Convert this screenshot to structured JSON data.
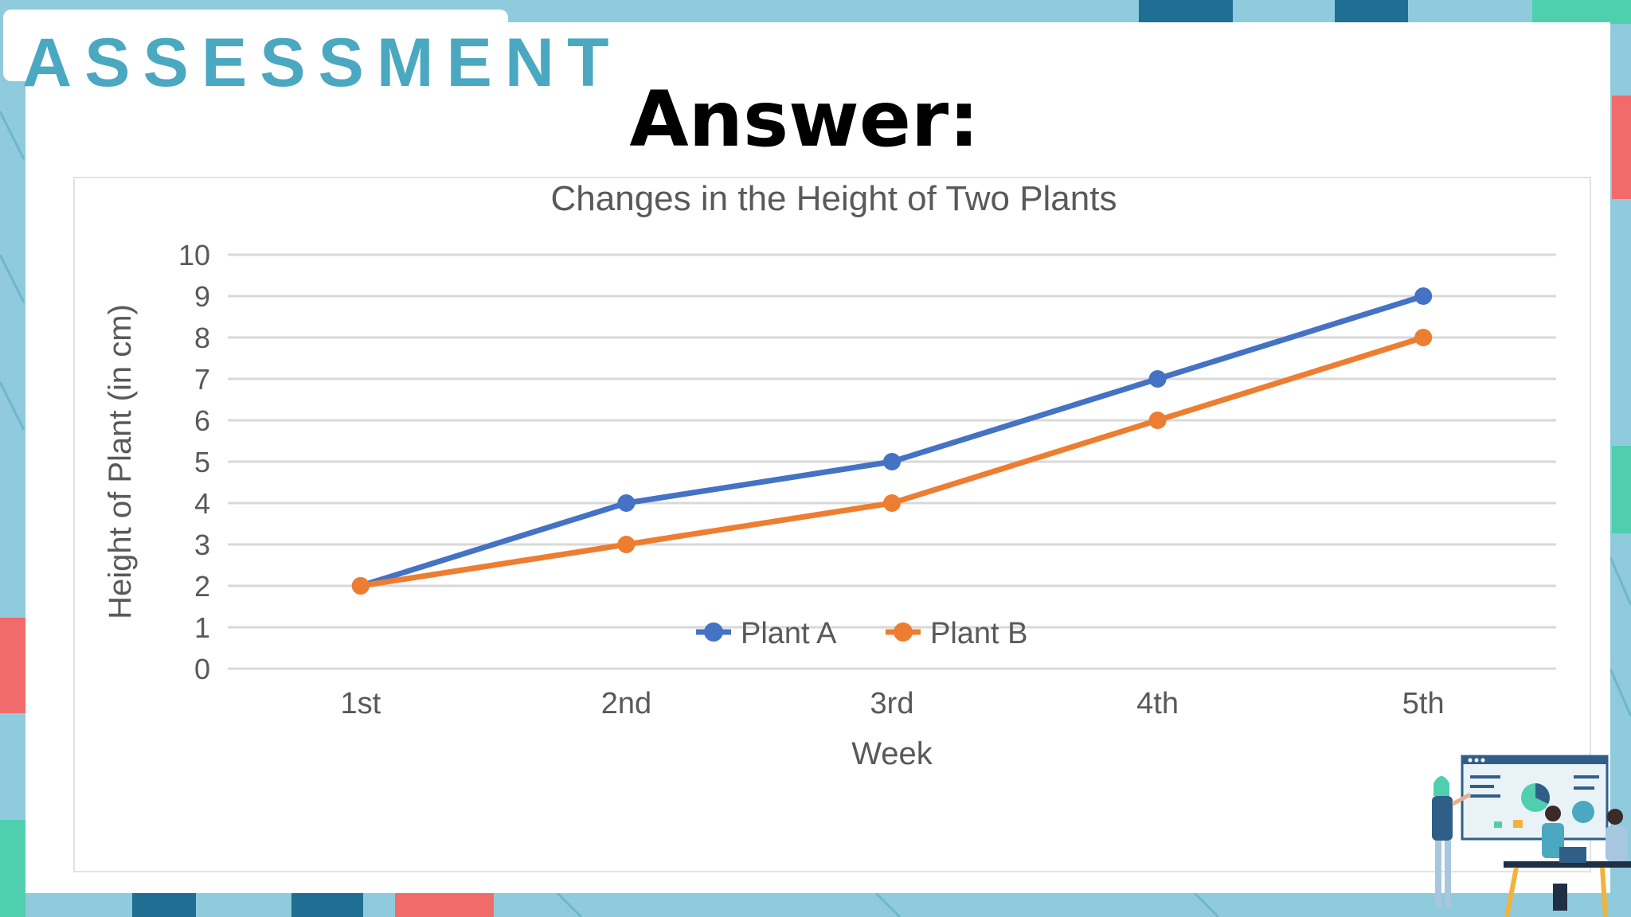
{
  "header": {
    "section_label": "ASSESSMENT",
    "title": "Answer:"
  },
  "theme": {
    "background": "#8fcbdc",
    "accent_teal": "#4aa8c0",
    "accent_dark_blue": "#1f6f94",
    "accent_coral": "#f26b6b",
    "accent_mint": "#4fcfae"
  },
  "illustration": {
    "icon": "team-presentation-illustration"
  },
  "chart_data": {
    "type": "line",
    "title": "Changes in the Height of Two Plants",
    "xlabel": "Week",
    "ylabel": "Height of Plant (in cm)",
    "categories": [
      "1st",
      "2nd",
      "3rd",
      "4th",
      "5th"
    ],
    "y_ticks": [
      "0",
      "1",
      "2",
      "3",
      "4",
      "5",
      "6",
      "7",
      "8",
      "9",
      "10"
    ],
    "ylim": [
      0,
      10
    ],
    "grid": true,
    "legend_position": "bottom",
    "series": [
      {
        "name": "Plant A",
        "values": [
          2,
          4,
          5,
          7,
          9
        ],
        "color": "#4472c4"
      },
      {
        "name": "Plant B",
        "values": [
          2,
          3,
          4,
          6,
          8
        ],
        "color": "#ed7d31"
      }
    ]
  }
}
